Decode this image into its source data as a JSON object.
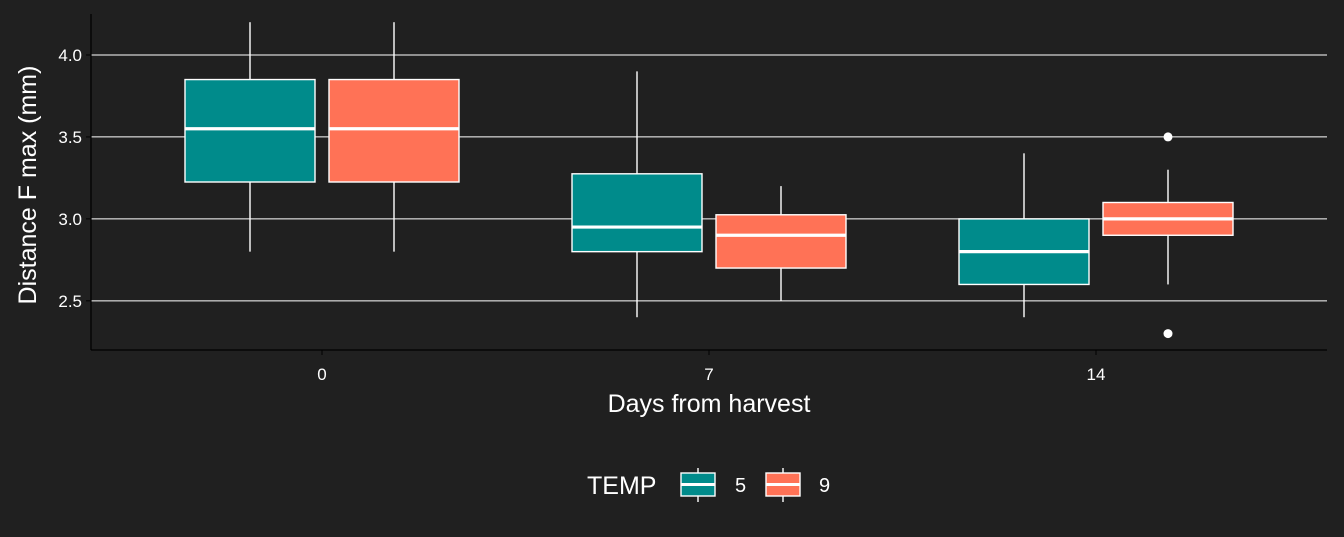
{
  "chart_data": {
    "type": "boxplot",
    "title": "",
    "xlabel": "Days from harvest",
    "ylabel": "Distance F max (mm)",
    "categories": [
      "0",
      "7",
      "14"
    ],
    "y_ticks": [
      "2.5",
      "3.0",
      "3.5",
      "4.0"
    ],
    "ylim": [
      2.2,
      4.25
    ],
    "grid": true,
    "legend": {
      "title": "TEMP",
      "position": "bottom"
    },
    "series": [
      {
        "name": "5",
        "color": "#008B8B",
        "boxes": [
          {
            "category": "0",
            "min": 2.8,
            "q1": 3.225,
            "median": 3.55,
            "q3": 3.85,
            "max": 4.2,
            "outliers": []
          },
          {
            "category": "7",
            "min": 2.4,
            "q1": 2.8,
            "median": 2.95,
            "q3": 3.275,
            "max": 3.9,
            "outliers": []
          },
          {
            "category": "14",
            "min": 2.4,
            "q1": 2.6,
            "median": 2.8,
            "q3": 3.0,
            "max": 3.4,
            "outliers": []
          }
        ]
      },
      {
        "name": "9",
        "color": "#FF7256",
        "boxes": [
          {
            "category": "0",
            "min": 2.8,
            "q1": 3.225,
            "median": 3.55,
            "q3": 3.85,
            "max": 4.2,
            "outliers": []
          },
          {
            "category": "7",
            "min": 2.5,
            "q1": 2.7,
            "median": 2.9,
            "q3": 3.025,
            "max": 3.2,
            "outliers": []
          },
          {
            "category": "14",
            "min": 2.6,
            "q1": 2.9,
            "median": 3.0,
            "q3": 3.1,
            "max": 3.3,
            "outliers": [
              3.5,
              2.3
            ]
          }
        ]
      }
    ]
  },
  "colors": {
    "background": "#202020",
    "grid": "#ffffff",
    "text": "#ffffff"
  }
}
